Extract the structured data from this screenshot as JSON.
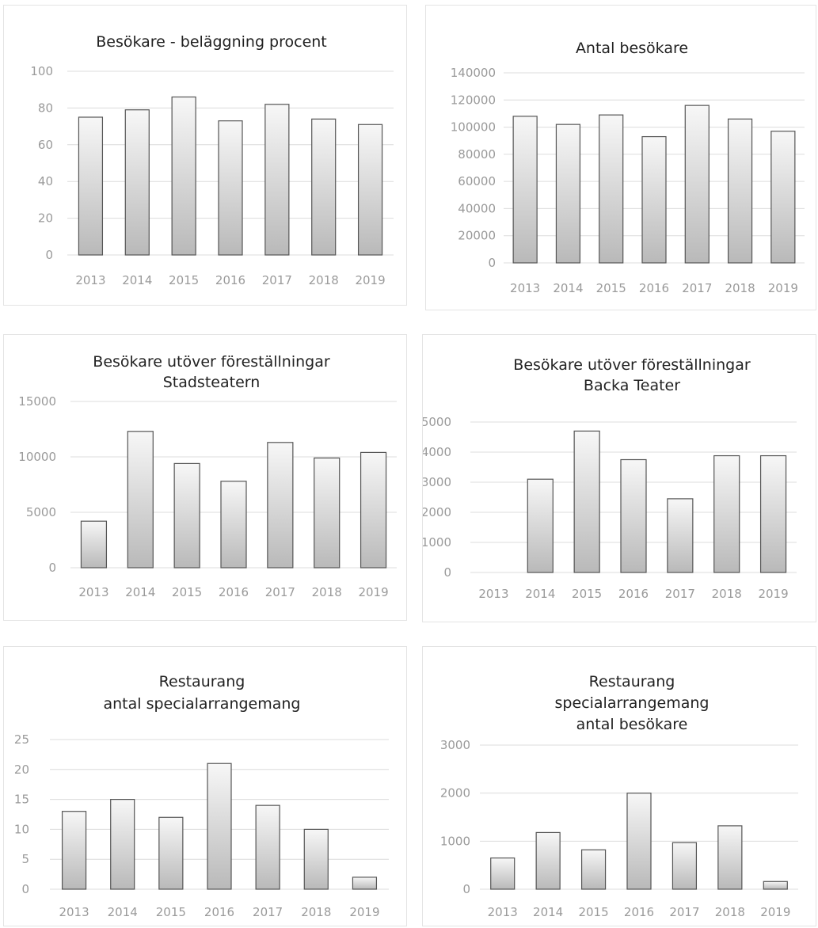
{
  "chart_data": [
    {
      "type": "bar",
      "title": [
        "Besökare - beläggning procent"
      ],
      "categories": [
        "2013",
        "2014",
        "2015",
        "2016",
        "2017",
        "2018",
        "2019"
      ],
      "values": [
        75,
        79,
        86,
        73,
        82,
        74,
        71
      ],
      "ylim": [
        0,
        100
      ],
      "yticks": [
        "0",
        "20",
        "40",
        "60",
        "80",
        "100"
      ],
      "grid": true
    },
    {
      "type": "bar",
      "title": [
        "Antal besökare"
      ],
      "categories": [
        "2013",
        "2014",
        "2015",
        "2016",
        "2017",
        "2018",
        "2019"
      ],
      "values": [
        108000,
        102000,
        109000,
        93000,
        116000,
        106000,
        97000
      ],
      "ylim": [
        0,
        140000
      ],
      "yticks": [
        "0",
        "20000",
        "40000",
        "60000",
        "80000",
        "100000",
        "120000",
        "140000"
      ],
      "grid": true
    },
    {
      "type": "bar",
      "title": [
        "Besökare utöver föreställningar",
        "Stadsteatern"
      ],
      "categories": [
        "2013",
        "2014",
        "2015",
        "2016",
        "2017",
        "2018",
        "2019"
      ],
      "values": [
        4200,
        12300,
        9400,
        7800,
        11300,
        9900,
        10400
      ],
      "ylim": [
        0,
        15000
      ],
      "yticks": [
        "0",
        "5000",
        "10000",
        "15000"
      ],
      "grid": true
    },
    {
      "type": "bar",
      "title": [
        "Besökare utöver föreställningar",
        "Backa Teater"
      ],
      "categories": [
        "2013",
        "2014",
        "2015",
        "2016",
        "2017",
        "2018",
        "2019"
      ],
      "values": [
        0,
        3100,
        4700,
        3750,
        2450,
        3880,
        3880
      ],
      "ylim": [
        0,
        5000
      ],
      "yticks": [
        "0",
        "1000",
        "2000",
        "3000",
        "4000",
        "5000"
      ],
      "grid": true
    },
    {
      "type": "bar",
      "title": [
        "Restaurang",
        "antal specialarrangemang"
      ],
      "categories": [
        "2013",
        "2014",
        "2015",
        "2016",
        "2017",
        "2018",
        "2019"
      ],
      "values": [
        13,
        15,
        12,
        21,
        14,
        10,
        2
      ],
      "ylim": [
        0,
        25
      ],
      "yticks": [
        "0",
        "5",
        "10",
        "15",
        "20",
        "25"
      ],
      "grid": true
    },
    {
      "type": "bar",
      "title": [
        "Restaurang",
        "specialarrangemang",
        "antal besökare"
      ],
      "categories": [
        "2013",
        "2014",
        "2015",
        "2016",
        "2017",
        "2018",
        "2019"
      ],
      "values": [
        650,
        1180,
        820,
        2000,
        970,
        1320,
        160
      ],
      "ylim": [
        0,
        3000
      ],
      "yticks": [
        "0",
        "1000",
        "2000",
        "3000"
      ],
      "grid": true
    }
  ]
}
